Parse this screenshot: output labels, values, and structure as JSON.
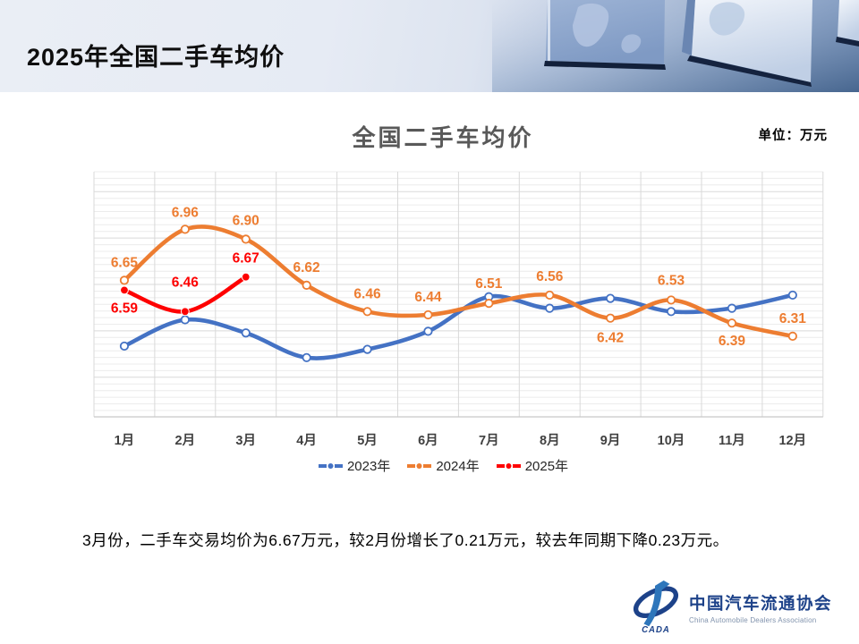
{
  "header": {
    "title": "2025年全国二手车均价"
  },
  "chart": {
    "unit_label": "单位：万元"
  },
  "chart_data": {
    "type": "line",
    "title": "全国二手车均价",
    "unit": "万元",
    "xlabel": "",
    "ylabel": "",
    "categories": [
      "1月",
      "2月",
      "3月",
      "4月",
      "5月",
      "6月",
      "7月",
      "8月",
      "9月",
      "10月",
      "11月",
      "12月"
    ],
    "series": [
      {
        "name": "2023年",
        "color": "#4472C4",
        "marker": "ring",
        "show_labels": false,
        "values": [
          6.25,
          6.41,
          6.33,
          6.18,
          6.23,
          6.34,
          6.55,
          6.48,
          6.54,
          6.46,
          6.48,
          6.56
        ]
      },
      {
        "name": "2024年",
        "color": "#ED7D31",
        "marker": "ring",
        "show_labels": true,
        "values": [
          6.65,
          6.96,
          6.9,
          6.62,
          6.46,
          6.44,
          6.51,
          6.56,
          6.42,
          6.53,
          6.39,
          6.31
        ],
        "label_dy": [
          -15,
          -14,
          -16,
          -15,
          -15,
          -15,
          -17,
          -16,
          27,
          -17,
          25,
          -15
        ]
      },
      {
        "name": "2025年",
        "color": "#FE0000",
        "marker": "dot",
        "show_labels": true,
        "values": [
          6.59,
          6.46,
          6.67
        ],
        "label_dy": [
          25,
          -28,
          -16
        ]
      }
    ],
    "ylim": [
      5.82,
      7.31
    ],
    "grid": true,
    "legend_position": "bottom"
  },
  "summary": "3月份，二手车交易均价为6.67万元，较2月份增长了0.21万元，较去年同期下降0.23万元。",
  "logo": {
    "cn": "中国汽车流通协会",
    "en": "China Automobile Dealers Association",
    "abbr": "CADA"
  }
}
